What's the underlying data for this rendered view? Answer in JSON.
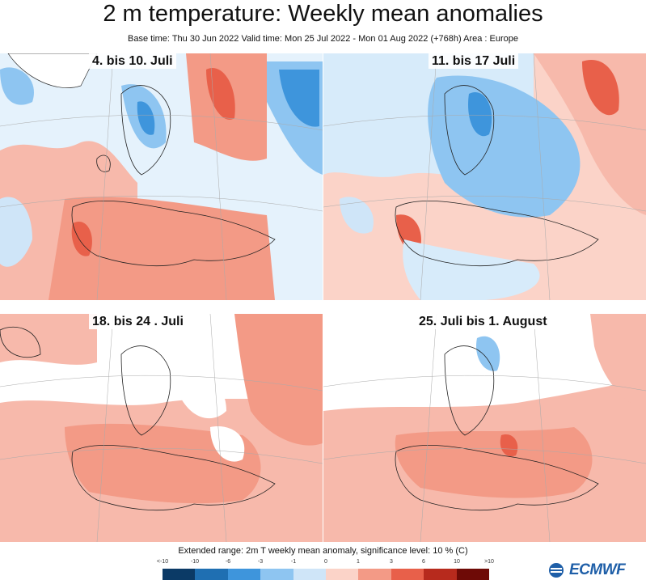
{
  "header": {
    "title": "2 m temperature: Weekly mean anomalies",
    "subtitle": "Base time: Thu 30 Jun 2022 Valid time: Mon 25 Jul 2022 - Mon 01 Aug 2022 (+768h) Area : Europe"
  },
  "panels": [
    {
      "label": "4. bis 10. Juli",
      "tone": "mixed-cool-north"
    },
    {
      "label": "11. bis 17 Juli",
      "tone": "cool-central-warm-sw"
    },
    {
      "label": "18. bis 24 . Juli",
      "tone": "warm-south"
    },
    {
      "label": "25. Juli bis 1. August",
      "tone": "warm-widespread"
    }
  ],
  "legend": {
    "caption": "Extended range: 2m T weekly mean anomaly, significance level: 10 % (C)",
    "ticks": [
      "<-10",
      "-10",
      "-6",
      "-3",
      "-1",
      "0",
      "1",
      "3",
      "6",
      "10",
      ">10"
    ],
    "colors": [
      "#0b3a66",
      "#1f6fb2",
      "#3e95dc",
      "#8ec5f1",
      "#cfe5f8",
      "#fbd3c8",
      "#f39a86",
      "#e8604a",
      "#b72a1d",
      "#6e0a06"
    ]
  },
  "logo": {
    "text": "ECMWF",
    "icon": "ecmwf-logo-icon"
  }
}
